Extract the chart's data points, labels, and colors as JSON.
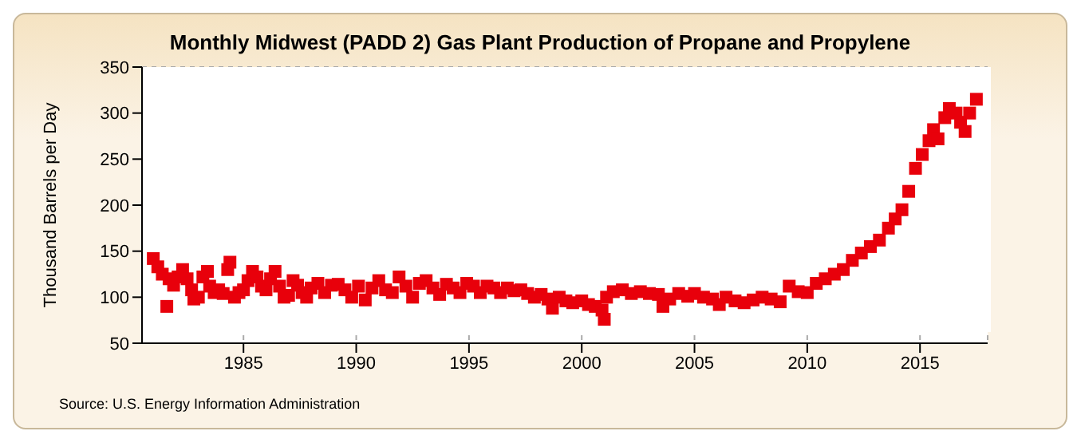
{
  "chart_data": {
    "type": "scatter",
    "title": "Monthly Midwest (PADD 2) Gas Plant Production of Propane and Propylene",
    "ylabel": "Thousand Barrels per Day",
    "annotations": [
      "Source: U.S. Energy Information Administration"
    ],
    "xlim": [
      1980.5,
      2018
    ],
    "xticks": [
      1985,
      1990,
      1995,
      2000,
      2005,
      2010,
      2015
    ],
    "ylim": [
      50,
      350
    ],
    "yticks": [
      50,
      100,
      150,
      200,
      250,
      300,
      350
    ],
    "grid": true,
    "marker": "square",
    "series": [
      {
        "color": "#e8000b",
        "x": [
          1981.0,
          1981.2,
          1981.4,
          1981.6,
          1981.7,
          1981.9,
          1982.1,
          1982.3,
          1982.5,
          1982.7,
          1982.8,
          1983.0,
          1983.2,
          1983.4,
          1983.5,
          1983.7,
          1983.9,
          1984.1,
          1984.3,
          1984.4,
          1984.6,
          1984.8,
          1985.0,
          1985.2,
          1985.4,
          1985.6,
          1985.8,
          1986.0,
          1986.2,
          1986.4,
          1986.6,
          1986.8,
          1987.0,
          1987.2,
          1987.4,
          1987.6,
          1987.8,
          1988.0,
          1988.3,
          1988.6,
          1988.9,
          1989.2,
          1989.5,
          1989.8,
          1990.1,
          1990.4,
          1990.7,
          1991.0,
          1991.3,
          1991.6,
          1991.9,
          1992.2,
          1992.5,
          1992.8,
          1993.1,
          1993.4,
          1993.7,
          1994.0,
          1994.3,
          1994.6,
          1994.9,
          1995.2,
          1995.5,
          1995.8,
          1996.1,
          1996.4,
          1996.7,
          1997.0,
          1997.3,
          1997.6,
          1997.9,
          1998.2,
          1998.5,
          1998.7,
          1999.0,
          1999.3,
          1999.6,
          2000.0,
          2000.3,
          2000.6,
          2000.9,
          2001.0,
          2001.1,
          2001.4,
          2001.8,
          2002.2,
          2002.6,
          2003.0,
          2003.4,
          2003.6,
          2003.9,
          2004.3,
          2004.7,
          2005.0,
          2005.4,
          2005.8,
          2006.1,
          2006.4,
          2006.8,
          2007.2,
          2007.6,
          2008.0,
          2008.4,
          2008.8,
          2009.2,
          2009.6,
          2010.0,
          2010.4,
          2010.8,
          2011.2,
          2011.6,
          2012.0,
          2012.4,
          2012.8,
          2013.2,
          2013.6,
          2013.9,
          2014.2,
          2014.5,
          2014.8,
          2015.1,
          2015.4,
          2015.6,
          2015.8,
          2016.1,
          2016.3,
          2016.6,
          2016.8,
          2017.0,
          2017.2,
          2017.5
        ],
        "values": [
          142,
          133,
          125,
          90,
          120,
          113,
          122,
          130,
          120,
          108,
          98,
          100,
          122,
          128,
          112,
          105,
          108,
          104,
          130,
          138,
          100,
          105,
          108,
          118,
          128,
          122,
          112,
          108,
          120,
          128,
          112,
          100,
          102,
          118,
          113,
          105,
          100,
          110,
          115,
          105,
          113,
          114,
          108,
          100,
          112,
          97,
          110,
          118,
          108,
          105,
          122,
          112,
          100,
          115,
          118,
          110,
          103,
          114,
          110,
          105,
          115,
          112,
          105,
          112,
          110,
          105,
          110,
          107,
          108,
          104,
          100,
          103,
          98,
          88,
          100,
          96,
          94,
          96,
          92,
          90,
          86,
          76,
          100,
          106,
          108,
          104,
          106,
          104,
          103,
          90,
          98,
          104,
          101,
          104,
          100,
          98,
          92,
          100,
          96,
          94,
          97,
          100,
          98,
          95,
          112,
          106,
          105,
          115,
          120,
          125,
          130,
          140,
          148,
          155,
          162,
          175,
          185,
          195,
          215,
          240,
          255,
          270,
          282,
          272,
          295,
          305,
          300,
          290,
          280,
          300,
          315
        ]
      }
    ]
  }
}
